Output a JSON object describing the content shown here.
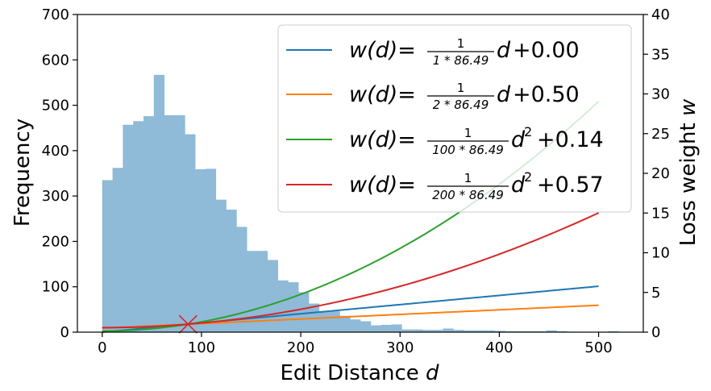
{
  "chart_data": {
    "type": "bar+line",
    "title": "",
    "xlabel": "Edit Distance",
    "xlabel_var": "d",
    "ylabel": "Frequency",
    "ylabel_right": "Loss weight",
    "ylabel_right_var": "w",
    "xlim": [
      -25,
      545
    ],
    "ylim": [
      0,
      700
    ],
    "ylim_right": [
      0,
      40
    ],
    "x_ticks": [
      0,
      100,
      200,
      300,
      400,
      500
    ],
    "y_ticks": [
      0,
      100,
      200,
      300,
      400,
      500,
      600,
      700
    ],
    "y_ticks_right": [
      0,
      5,
      10,
      15,
      20,
      25,
      30,
      35,
      40
    ],
    "histogram": {
      "color": "#8fbad8",
      "bin_width": 10.4,
      "bin_start": 0,
      "counts": [
        335,
        362,
        457,
        465,
        476,
        567,
        478,
        478,
        436,
        359,
        360,
        292,
        270,
        232,
        179,
        179,
        159,
        114,
        110,
        88,
        63,
        46,
        46,
        36,
        28,
        24,
        15,
        16,
        17,
        6,
        6,
        5,
        5,
        8,
        5,
        4,
        4,
        4,
        3,
        2,
        2,
        2,
        2,
        4,
        2,
        1,
        0,
        0,
        0,
        2,
        0
      ]
    },
    "series": [
      {
        "legend_prefix": "w(d)=",
        "num": "1",
        "den": "1 * 86.49",
        "power": "",
        "suffix": "+0.00",
        "color": "#1f77b4",
        "a": 0.011562,
        "p": 1,
        "c": 0.0
      },
      {
        "legend_prefix": "w(d)=",
        "num": "1",
        "den": "2 * 86.49",
        "power": "",
        "suffix": "+0.50",
        "color": "#ff7f0e",
        "a": 0.005781,
        "p": 1,
        "c": 0.5
      },
      {
        "legend_prefix": "w(d)=",
        "num": "1",
        "den": "100 * 86.49",
        "power": "2",
        "suffix": "+0.14",
        "color": "#2ca02c",
        "a": 0.00011562,
        "p": 2,
        "c": 0.14
      },
      {
        "legend_prefix": "w(d)=",
        "num": "1",
        "den": "200 * 86.49",
        "power": "2",
        "suffix": "+0.57",
        "color": "#d62728",
        "a": 5.781e-05,
        "p": 2,
        "c": 0.57
      }
    ],
    "series_x_range": [
      0,
      500
    ],
    "marker": {
      "shape": "x",
      "x": 86.49,
      "w": 1.0,
      "color": "#d62728"
    },
    "legend_position": "upper-right"
  }
}
